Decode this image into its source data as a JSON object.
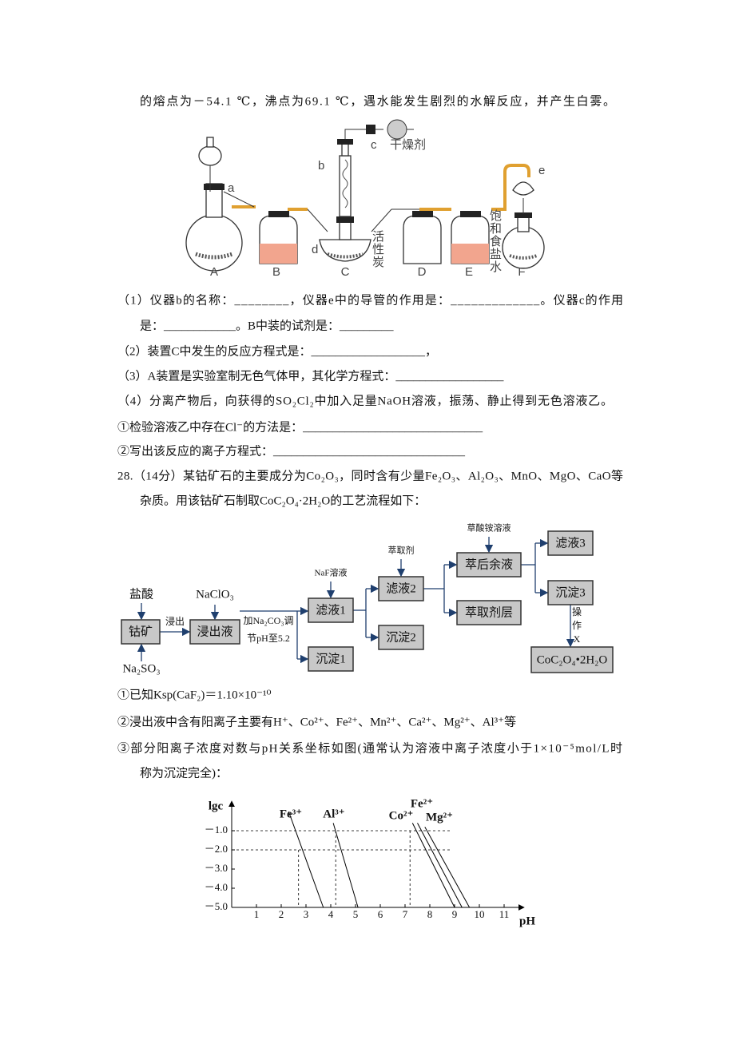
{
  "intro": "的熔点为－54.1 ℃，沸点为69.1 ℃，遇水能发生剧烈的水解反应，并产生白雾。",
  "apparatus": {
    "a": "a",
    "b": "b",
    "c": "c",
    "d": "d",
    "e": "e",
    "drying_agent": "干燥剂",
    "activated_carbon": [
      "活",
      "性",
      "炭"
    ],
    "brine": [
      "饱",
      "和",
      "食",
      "盐",
      "水"
    ],
    "units": [
      "A",
      "B",
      "C",
      "D",
      "E",
      "F"
    ]
  },
  "questions": [
    "（1）仪器b的名称：________，仪器e中的导管的作用是：_____________。仪器c的作用",
    "是：____________。B中装的试剂是：_________",
    "（2）装置C中发生的反应方程式是：___________________，",
    "（3）A装置是实验室制无色气体甲，其化学方程式：__________________",
    "（4）分离产物后，向获得的SO₂Cl₂中加入足量NaOH溶液，振荡、静止得到无色溶液乙。",
    "①检验溶液乙中存在Cl⁻的方法是：______________________________",
    "②写出该反应的离子方程式：________________________________"
  ],
  "problem28": {
    "lines": [
      "28.（14分）某钴矿石的主要成分为Co₂O₃，同时含有少量Fe₂O₃、Al₂O₃、MnO、MgO、CaO等",
      "杂质。用该钴矿石制取CoC₂O₄·2H₂O的工艺流程如下："
    ],
    "flow": {
      "nodes": [
        "钴矿",
        "浸出液",
        "滤液1",
        "沉淀1",
        "滤液2",
        "沉淀2",
        "萃后余液",
        "萃取剂层",
        "滤液3",
        "沉淀3",
        "CoC₂O₄•2H₂O"
      ],
      "reagents": [
        "盐酸",
        "Na₂SO₃",
        "NaClO₃",
        "NaF溶液",
        "萃取剂",
        "草酸铵溶液"
      ],
      "steps": [
        "浸出",
        "加Na₂CO₃调",
        "节pH至5.2",
        "操",
        "作",
        "X"
      ]
    },
    "notes": [
      "①已知Ksp(CaF₂)＝1.10×10⁻¹⁰",
      "②浸出液中含有阳离子主要有H⁺、Co²⁺、Fe²⁺、Mn²⁺、Ca²⁺、Mg²⁺、Al³⁺等",
      "③部分阳离子浓度对数与pH关系坐标如图(通常认为溶液中离子浓度小于1×10⁻⁵mol/L时",
      "称为沉淀完全)："
    ],
    "graph": {
      "y_label": "lgc",
      "x_label": "pH",
      "xlim": [
        0,
        11.8
      ],
      "ylim": [
        -5,
        0.2
      ],
      "xticks": [
        1,
        2,
        3,
        4,
        5,
        6,
        7,
        8,
        9,
        10,
        11
      ],
      "yticks": [
        {
          "value": -1,
          "label": "－1.0"
        },
        {
          "value": -2,
          "label": "－2.0"
        },
        {
          "value": -3,
          "label": "－3.0"
        },
        {
          "value": -4,
          "label": "－4.0"
        },
        {
          "value": -5,
          "label": "－5.0"
        }
      ],
      "ions": [
        {
          "name": "Fe³⁺",
          "ph": [
            2.3,
            3.7
          ],
          "lgc": [
            0,
            -5
          ]
        },
        {
          "name": "Al³⁺",
          "ph": [
            4.1,
            5.1
          ],
          "lgc": [
            -0.6,
            -5
          ]
        },
        {
          "name": "Co²⁺",
          "ph": [
            7.3,
            9.0
          ],
          "lgc": [
            -0.6,
            -5
          ]
        },
        {
          "name": "Fe²⁺",
          "ph": [
            7.5,
            9.3
          ],
          "lgc": [
            -0.6,
            -5
          ]
        },
        {
          "name": "Mg²⁺",
          "ph": [
            7.8,
            9.6
          ],
          "lgc": [
            -0.8,
            -5
          ]
        }
      ],
      "guides": {
        "ph": [
          2.7,
          4.2,
          7.2
        ],
        "lgc": [
          -2,
          -1,
          -1
        ]
      }
    }
  }
}
